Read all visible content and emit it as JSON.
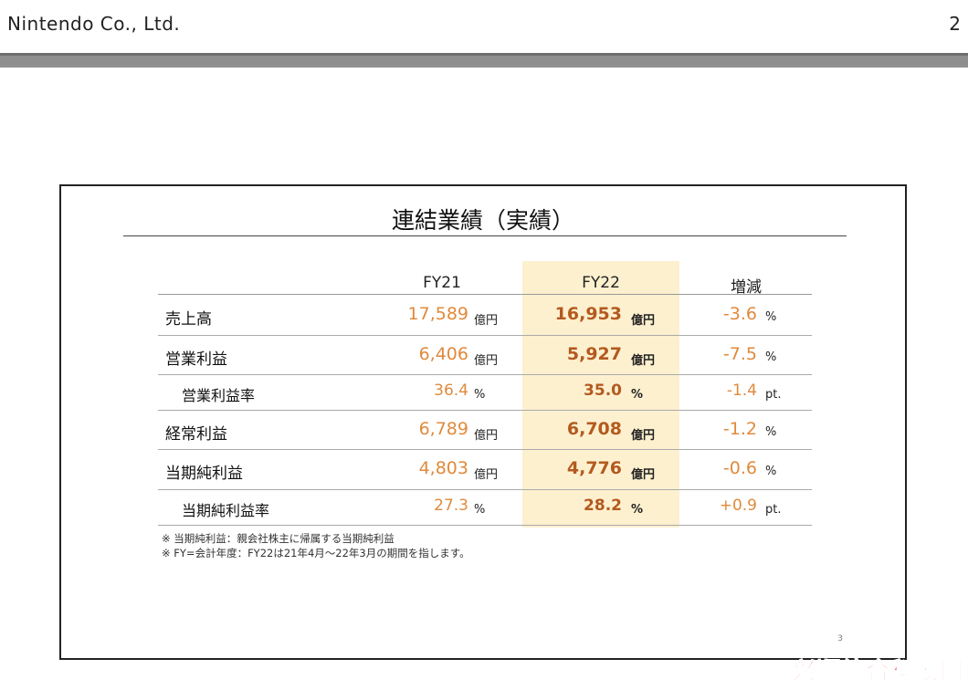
{
  "header": {
    "company": "Nintendo Co., Ltd.",
    "page_number": "2"
  },
  "slide": {
    "title": "連結業績（実績）",
    "columns": {
      "fy21": "FY21",
      "fy22": "FY22",
      "change": "増減"
    },
    "rows": [
      {
        "label": "売上高",
        "fy21": "17,589",
        "fy21_unit": "億円",
        "fy22": "16,953",
        "fy22_unit": "億円",
        "change": "-3.6",
        "change_unit": "%"
      },
      {
        "label": "営業利益",
        "fy21": "6,406",
        "fy21_unit": "億円",
        "fy22": "5,927",
        "fy22_unit": "億円",
        "change": "-7.5",
        "change_unit": "%"
      },
      {
        "label": "営業利益率",
        "fy21": "36.4",
        "fy21_unit": "%",
        "fy22": "35.0",
        "fy22_unit": "%",
        "change": "-1.4",
        "change_unit": "pt."
      },
      {
        "label": "経常利益",
        "fy21": "6,789",
        "fy21_unit": "億円",
        "fy22": "6,708",
        "fy22_unit": "億円",
        "change": "-1.2",
        "change_unit": "%"
      },
      {
        "label": "当期純利益",
        "fy21": "4,803",
        "fy21_unit": "億円",
        "fy22": "4,776",
        "fy22_unit": "億円",
        "change": "-0.6",
        "change_unit": "%"
      },
      {
        "label": "当期純利益率",
        "fy21": "27.3",
        "fy21_unit": "%",
        "fy22": "28.2",
        "fy22_unit": "%",
        "change": "+0.9",
        "change_unit": "pt."
      }
    ],
    "notes": [
      "※ 当期純利益：親会社株主に帰属する当期純利益",
      "※ FY=会計年度：FY22は21年4月～22年3月の期間を指します。"
    ],
    "slide_page": "3"
  },
  "watermark": "兴顺综合科技网"
}
